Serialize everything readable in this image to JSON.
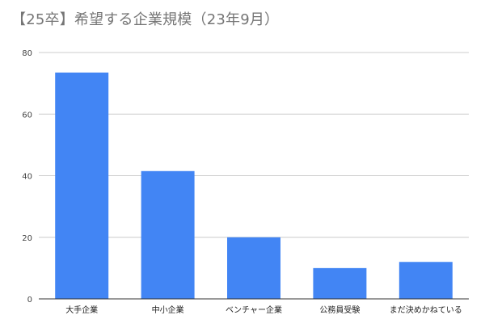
{
  "chart_data": {
    "type": "bar",
    "title": "【25卒】希望する企業規模（23年9月）",
    "xlabel": "",
    "ylabel": "",
    "categories": [
      "大手企業",
      "中小企業",
      "ベンチャー企業",
      "公務員受験",
      "まだ決めかねている"
    ],
    "values": [
      73.5,
      41.5,
      20,
      10,
      12
    ],
    "ylim": [
      0,
      80
    ],
    "yticks": [
      "0",
      "20",
      "40",
      "60",
      "80"
    ],
    "grid": true,
    "legend": "none",
    "colors": {
      "bar": "#4285f4",
      "grid": "#cccccc",
      "axis": "#333333",
      "title": "#757575"
    }
  }
}
